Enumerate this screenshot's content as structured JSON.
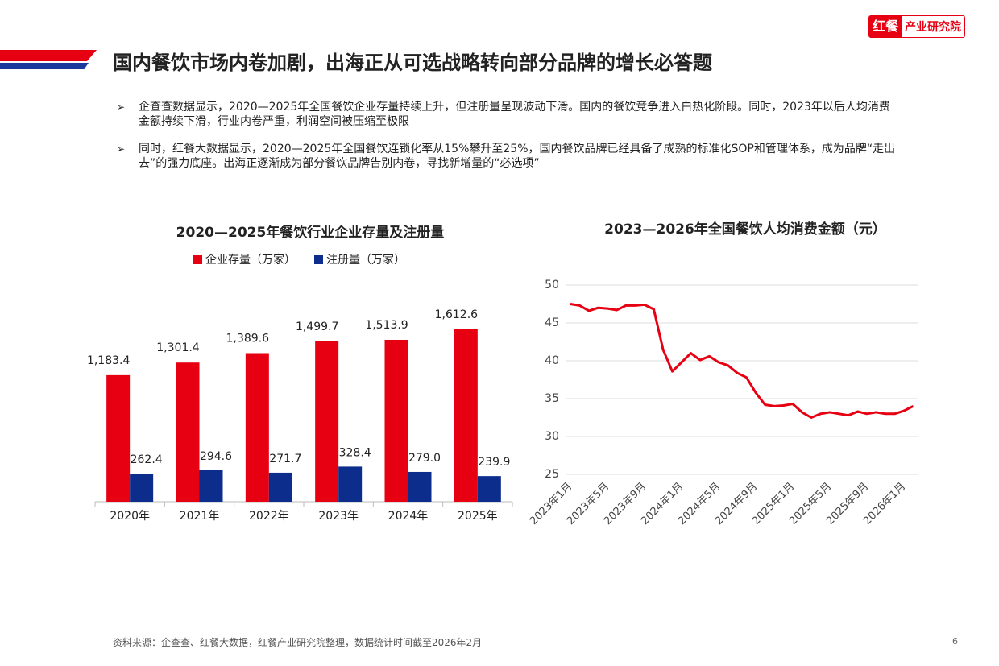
{
  "logo": {
    "brand": "红餐",
    "name": "产业研究院"
  },
  "title": "国内餐饮市场内卷加剧，出海正从可选战略转向部分品牌的增长必答题",
  "bullets": [
    "企查查数据显示，2020—2025年全国餐饮企业存量持续上升，但注册量呈现波动下滑。国内的餐饮竞争进入白热化阶段。同时，2023年以后人均消费金额持续下滑，行业内卷严重，利润空间被压缩至极限",
    "同时，红餐大数据显示，2020—2025年全国餐饮连锁化率从15%攀升至25%，国内餐饮品牌已经具备了成熟的标准化SOP和管理体系，成为品牌“走出去”的强力底座。出海正逐渐成为部分餐饮品牌告别内卷，寻找新增量的“必选项”"
  ],
  "source": "资料来源：企查查、红餐大数据，红餐产业研究院整理，数据统计时间截至2026年2月",
  "page_number": 6,
  "chart_data": [
    {
      "type": "bar",
      "title": "2020—2025年餐饮行业企业存量及注册量",
      "categories": [
        "2020年",
        "2021年",
        "2022年",
        "2023年",
        "2024年",
        "2025年"
      ],
      "series": [
        {
          "name": "企业存量（万家）",
          "color": "#e60012",
          "values": [
            1183.4,
            1301.4,
            1389.6,
            1499.7,
            1513.9,
            1612.6
          ],
          "value_labels": [
            "1,183.4",
            "1,301.4",
            "1,389.6",
            "1,499.7",
            "1,513.9",
            "1,612.6"
          ]
        },
        {
          "name": "注册量（万家）",
          "color": "#0c2d8c",
          "values": [
            262.4,
            294.6,
            271.7,
            328.4,
            279.0,
            239.9
          ],
          "value_labels": [
            "262.4",
            "294.6",
            "271.7",
            "328.4",
            "279.0",
            "239.9"
          ]
        }
      ],
      "ylim": [
        0,
        1800
      ]
    },
    {
      "type": "line",
      "title": "2023—2026年全国餐饮人均消费金额（元）",
      "categories": [
        "2023年1月",
        null,
        null,
        null,
        "2023年5月",
        null,
        null,
        null,
        "2023年9月",
        null,
        null,
        null,
        "2024年1月",
        null,
        null,
        null,
        "2024年5月",
        null,
        null,
        null,
        "2024年9月",
        null,
        null,
        null,
        "2025年1月",
        null,
        null,
        null,
        "2025年5月",
        null,
        null,
        null,
        "2025年9月",
        null,
        null,
        null,
        "2026年1月",
        null
      ],
      "values": [
        47.5,
        47.3,
        46.6,
        47.0,
        46.9,
        46.7,
        47.3,
        47.3,
        47.4,
        46.8,
        41.5,
        38.6,
        39.8,
        41.0,
        40.1,
        40.6,
        39.8,
        39.4,
        38.4,
        37.8,
        35.8,
        34.2,
        34.0,
        34.1,
        34.3,
        33.2,
        32.5,
        33.0,
        33.2,
        33.0,
        32.8,
        33.3,
        33.0,
        33.2,
        33.0,
        33.0,
        33.4,
        34.0
      ],
      "color": "#e60012",
      "ylim": [
        25,
        50
      ],
      "yticks": [
        25,
        30,
        35,
        40,
        45,
        50
      ],
      "grid": true
    }
  ]
}
